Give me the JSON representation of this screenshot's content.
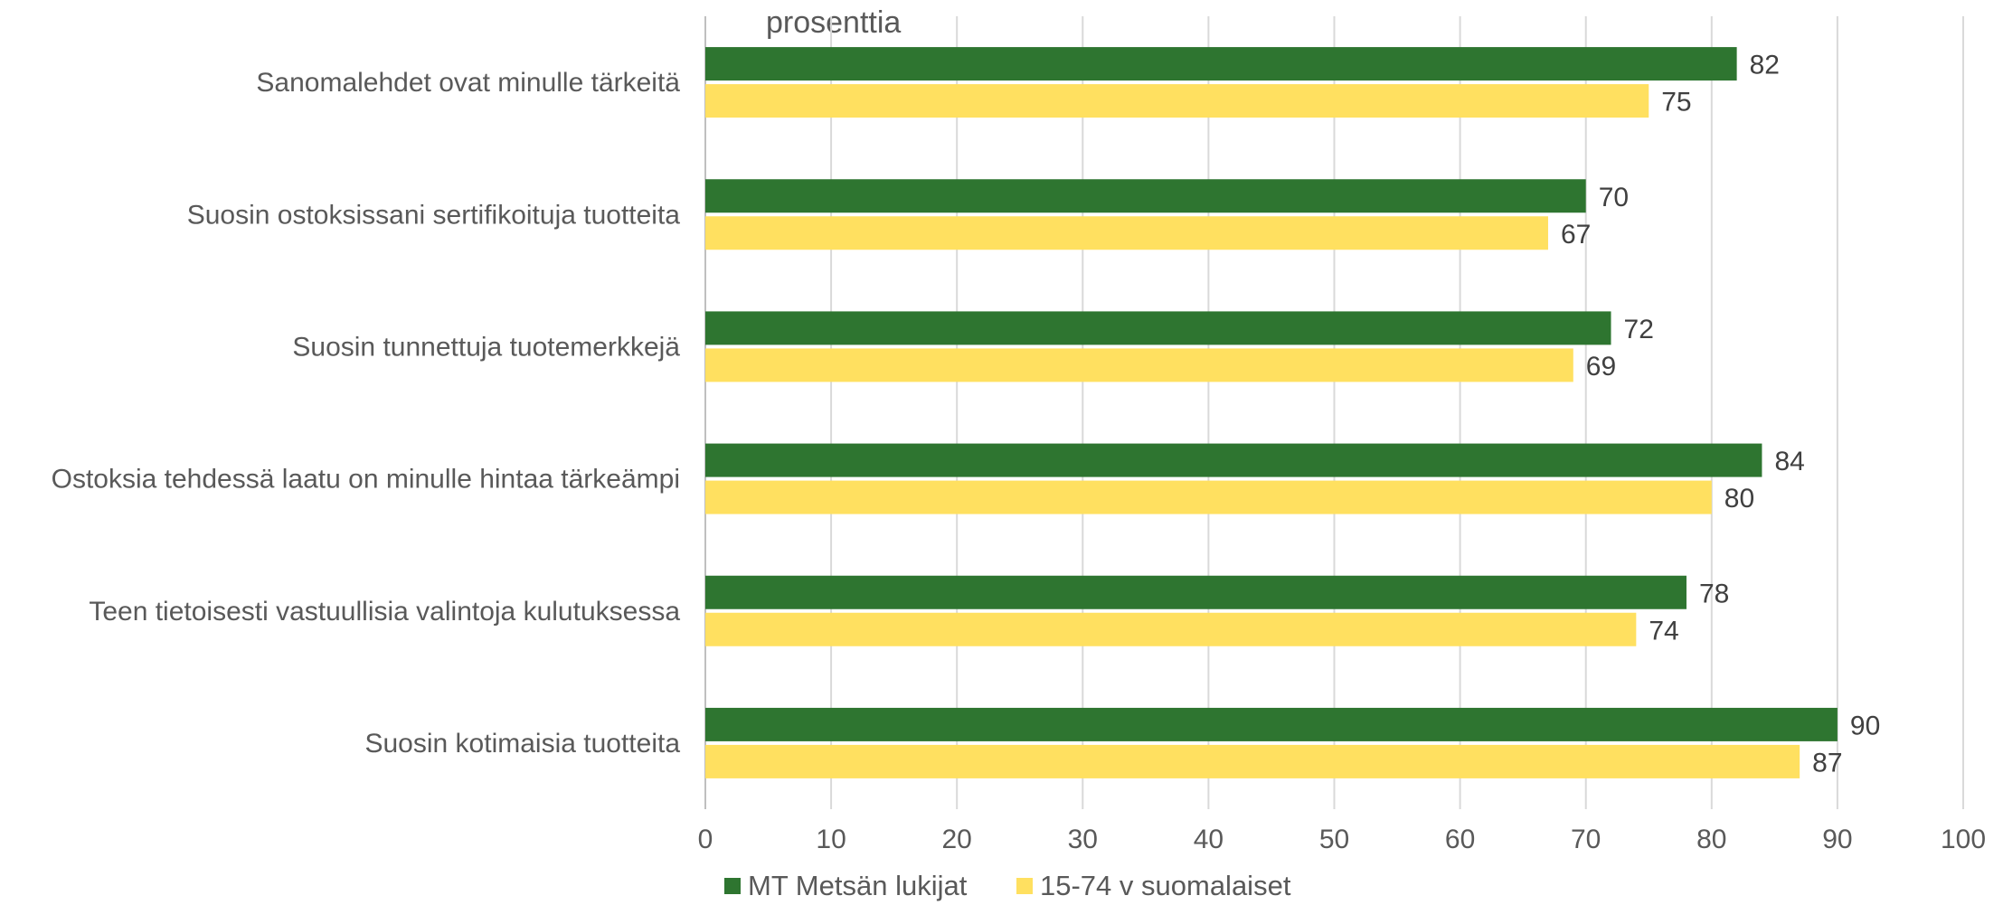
{
  "chart_data": {
    "type": "bar",
    "orientation": "horizontal",
    "unit_label": "prosenttia",
    "categories": [
      "Sanomalehdet ovat minulle tärkeitä",
      "Suosin ostoksissani sertifikoituja  tuotteita",
      "Suosin tunnettuja tuotemerkkejä",
      "Ostoksia tehdessä laatu on minulle hintaa tärkeämpi",
      "Teen tietoisesti vastuullisia valintoja kulutuksessa",
      "Suosin kotimaisia tuotteita"
    ],
    "series": [
      {
        "name": "MT Metsän lukijat",
        "color": "#2e7530",
        "values": [
          82,
          70,
          72,
          84,
          78,
          90
        ]
      },
      {
        "name": "15-74 v suomalaiset",
        "color": "#ffe060",
        "values": [
          75,
          67,
          69,
          80,
          74,
          87
        ]
      }
    ],
    "xlim": [
      0,
      100
    ],
    "xticks": [
      "0",
      "10",
      "20",
      "30",
      "40",
      "50",
      "60",
      "70",
      "80",
      "90",
      "100"
    ],
    "grid": true,
    "legend_position": "bottom",
    "gridline_color": "#d9d9d9"
  }
}
